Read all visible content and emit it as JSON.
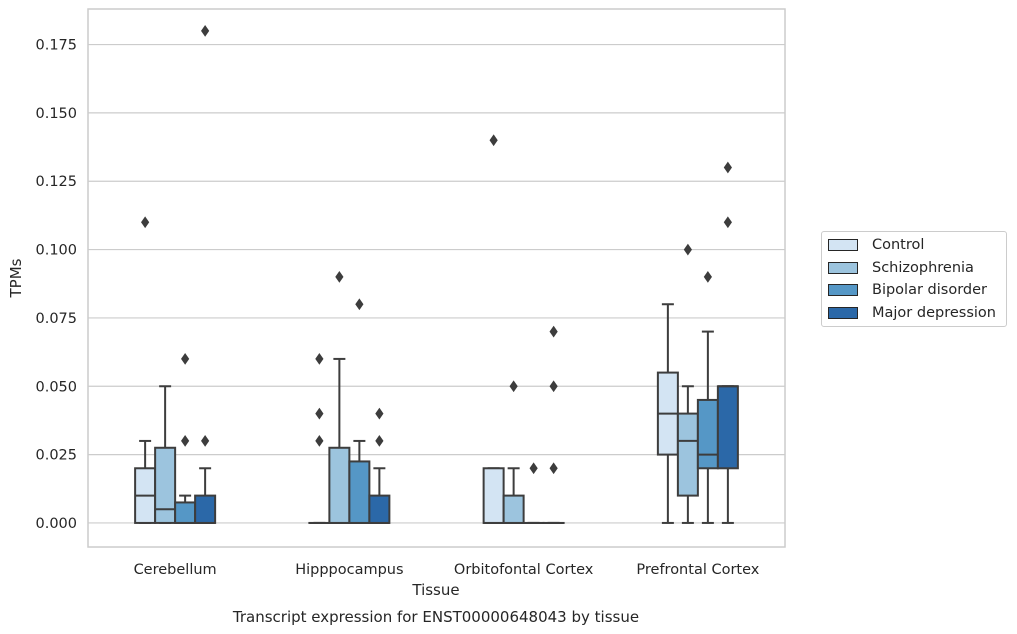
{
  "chart_data": {
    "type": "box",
    "xlabel": "Tissue",
    "ylabel": "TPMs",
    "caption": "Transcript expression for ENST00000648043 by tissue",
    "ylim": [
      -0.0088,
      0.188
    ],
    "yticks": [
      "0.000",
      "0.025",
      "0.050",
      "0.075",
      "0.100",
      "0.125",
      "0.150",
      "0.175"
    ],
    "grid": true,
    "legend_position": "right",
    "categories": [
      "Cerebellum",
      "Hipppocampus",
      "Orbitofontal Cortex",
      "Prefrontal Cortex"
    ],
    "series": [
      {
        "name": "Control",
        "color": "#d3e4f3",
        "boxes": [
          {
            "whislo": 0,
            "q1": 0,
            "med": 0.01,
            "q3": 0.02,
            "whishi": 0.03,
            "fliers": [
              0.11
            ]
          },
          {
            "whislo": 0,
            "q1": 0,
            "med": 0,
            "q3": 0,
            "whishi": 0,
            "fliers": [
              0.03,
              0.04,
              0.06
            ]
          },
          {
            "whislo": 0,
            "q1": 0,
            "med": 0,
            "q3": 0.02,
            "whishi": 0.02,
            "fliers": [
              0.14
            ]
          },
          {
            "whislo": 0,
            "q1": 0.025,
            "med": 0.04,
            "q3": 0.055,
            "whishi": 0.08,
            "fliers": []
          }
        ]
      },
      {
        "name": "Schizophrenia",
        "color": "#9cc4de",
        "boxes": [
          {
            "whislo": 0,
            "q1": 0,
            "med": 0.005,
            "q3": 0.0275,
            "whishi": 0.05,
            "fliers": []
          },
          {
            "whislo": 0,
            "q1": 0,
            "med": 0,
            "q3": 0.0275,
            "whishi": 0.06,
            "fliers": [
              0.09
            ]
          },
          {
            "whislo": 0,
            "q1": 0,
            "med": 0,
            "q3": 0.01,
            "whishi": 0.02,
            "fliers": [
              0.05
            ]
          },
          {
            "whislo": 0,
            "q1": 0.01,
            "med": 0.03,
            "q3": 0.04,
            "whishi": 0.05,
            "fliers": [
              0.1
            ]
          }
        ]
      },
      {
        "name": "Bipolar disorder",
        "color": "#5597c6",
        "boxes": [
          {
            "whislo": 0,
            "q1": 0,
            "med": 0,
            "q3": 0.0075,
            "whishi": 0.01,
            "fliers": [
              0.03,
              0.06
            ]
          },
          {
            "whislo": 0,
            "q1": 0,
            "med": 0,
            "q3": 0.0225,
            "whishi": 0.03,
            "fliers": [
              0.08
            ]
          },
          {
            "whislo": 0,
            "q1": 0,
            "med": 0,
            "q3": 0,
            "whishi": 0,
            "fliers": [
              0.02
            ]
          },
          {
            "whislo": 0,
            "q1": 0.02,
            "med": 0.025,
            "q3": 0.045,
            "whishi": 0.07,
            "fliers": [
              0.09
            ]
          }
        ]
      },
      {
        "name": "Major depression",
        "color": "#2b68a8",
        "boxes": [
          {
            "whislo": 0,
            "q1": 0,
            "med": 0,
            "q3": 0.01,
            "whishi": 0.02,
            "fliers": [
              0.03,
              0.18
            ]
          },
          {
            "whislo": 0,
            "q1": 0,
            "med": 0,
            "q3": 0.01,
            "whishi": 0.02,
            "fliers": [
              0.03,
              0.04
            ]
          },
          {
            "whislo": 0,
            "q1": 0,
            "med": 0,
            "q3": 0,
            "whishi": 0,
            "fliers": [
              0.02,
              0.05,
              0.07
            ]
          },
          {
            "whislo": 0,
            "q1": 0.02,
            "med": 0.05,
            "q3": 0.05,
            "whishi": 0.05,
            "fliers": [
              0.11,
              0.13
            ]
          }
        ]
      }
    ]
  }
}
